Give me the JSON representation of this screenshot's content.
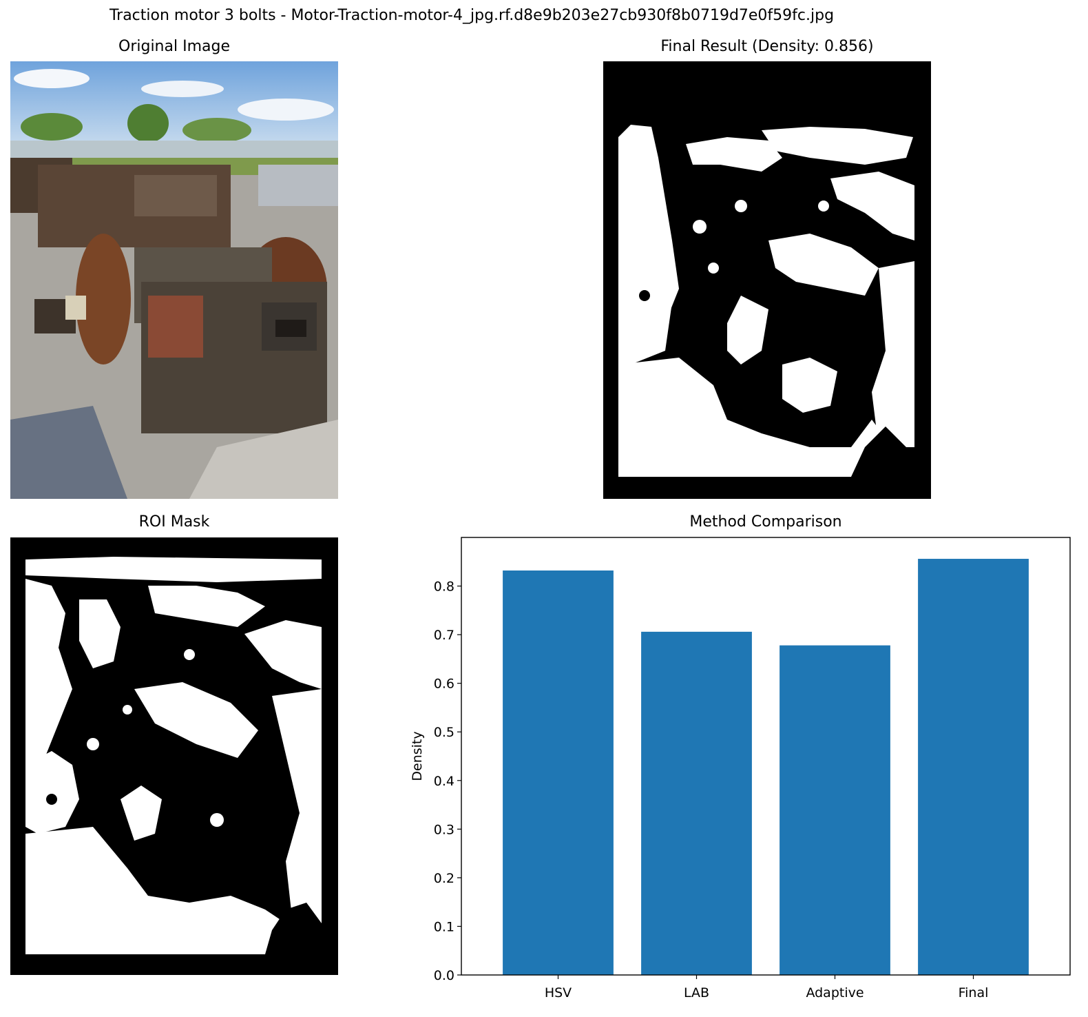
{
  "figure": {
    "suptitle": "Traction motor 3 bolts - Motor-Traction-motor-4_jpg.rf.d8e9b203e27cb930f8b0719d7e0f59fc.jpg"
  },
  "panels": {
    "original": {
      "title": "Original Image"
    },
    "final": {
      "title": "Final Result (Density: 0.856)"
    },
    "roi": {
      "title": "ROI Mask"
    },
    "comparison": {
      "title": "Method Comparison"
    }
  },
  "colors": {
    "bar": "#1f77b4",
    "mask_on": "#ffffff",
    "mask_off": "#000000"
  },
  "chart_data": {
    "type": "bar",
    "title": "Method Comparison",
    "categories": [
      "HSV",
      "LAB",
      "Adaptive",
      "Final"
    ],
    "values": [
      0.832,
      0.706,
      0.678,
      0.856
    ],
    "xlabel": "",
    "ylabel": "Density",
    "ylim": [
      0,
      0.9
    ],
    "yticks": [
      "0.0",
      "0.1",
      "0.2",
      "0.3",
      "0.4",
      "0.5",
      "0.6",
      "0.7",
      "0.8"
    ],
    "grid": false,
    "legend": "none"
  }
}
